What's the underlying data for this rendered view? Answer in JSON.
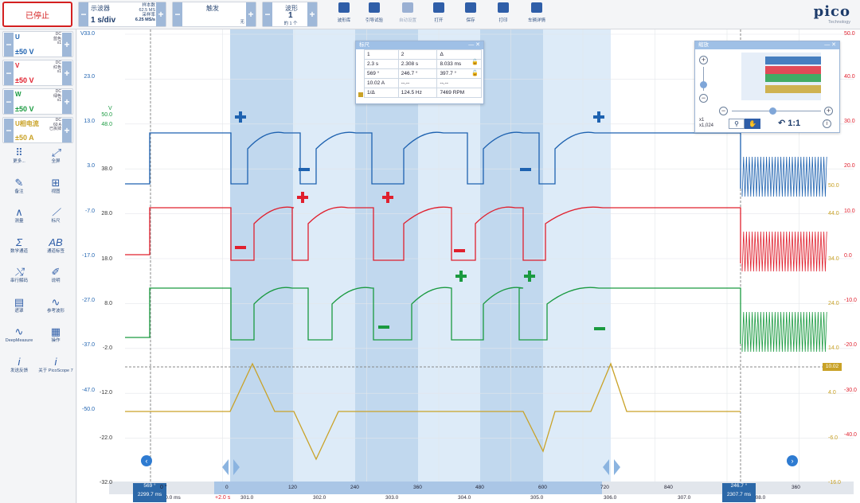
{
  "toolbar": {
    "stop_label": "已停止",
    "scope": {
      "title": "示波器",
      "value": "1 s/div",
      "samples_label": "样本数",
      "samples": "62.5 MS",
      "rate_label": "采样率",
      "rate": "6.25 MS/s"
    },
    "trigger": {
      "title": "触发",
      "value": "无"
    },
    "waveform": {
      "title": "波形",
      "value": "1",
      "of": "的 1 个"
    },
    "actions": [
      {
        "label": "波形库",
        "icon": "waveform-library-icon"
      },
      {
        "label": "引导试验",
        "icon": "guided-test-icon"
      },
      {
        "label": "自动设置",
        "icon": "auto-setup-icon"
      },
      {
        "label": "打开",
        "icon": "folder-open-icon"
      },
      {
        "label": "保存",
        "icon": "save-icon"
      },
      {
        "label": "打印",
        "icon": "print-icon"
      },
      {
        "label": "车辆详情",
        "icon": "vehicle-details-icon"
      }
    ],
    "brand": "pico",
    "brand_sub": "Technology"
  },
  "channels": [
    {
      "name": "U",
      "coupling": "DC",
      "color_name": "蓝色",
      "probe": "x1",
      "range": "±50 V",
      "color": "#1e62b0"
    },
    {
      "name": "V",
      "coupling": "DC",
      "color_name": "红色",
      "probe": "x1",
      "range": "±50 V",
      "color": "#e0202e"
    },
    {
      "name": "W",
      "coupling": "DC",
      "color_name": "绿色",
      "probe": "x1",
      "range": "±50 V",
      "color": "#1a9a40"
    },
    {
      "name": "U相电流",
      "coupling": "DC",
      "color_name": "60 A",
      "probe": "已拆掉",
      "range": "±50 A",
      "color": "#c9a227"
    }
  ],
  "tools": [
    {
      "label": "更多...",
      "icon": "more-dots-icon",
      "glyph": "⠿"
    },
    {
      "label": "全屏",
      "icon": "fullscreen-icon",
      "glyph": "⤢"
    },
    {
      "label": "备注",
      "icon": "notes-icon",
      "glyph": "✎"
    },
    {
      "label": "视图",
      "icon": "view-grid-icon",
      "glyph": "⊞"
    },
    {
      "label": "测量",
      "icon": "measure-icon",
      "glyph": "∧"
    },
    {
      "label": "标尺",
      "icon": "ruler-icon",
      "glyph": "⟋"
    },
    {
      "label": "数学通道",
      "icon": "math-channel-icon",
      "glyph": "Σ"
    },
    {
      "label": "通道标签",
      "icon": "channel-label-icon",
      "glyph": "AB"
    },
    {
      "label": "串行解码",
      "icon": "serial-decode-icon",
      "glyph": "⤭"
    },
    {
      "label": "说明",
      "icon": "description-icon",
      "glyph": "✐"
    },
    {
      "label": "遮罩",
      "icon": "mask-icon",
      "glyph": "▤"
    },
    {
      "label": "参考波形",
      "icon": "reference-waveform-icon",
      "glyph": "∿"
    },
    {
      "label": "DeepMeasure",
      "icon": "deepmeasure-icon",
      "glyph": "∿"
    },
    {
      "label": "操作",
      "icon": "actions-clapper-icon",
      "glyph": "▦"
    },
    {
      "label": "发送反馈",
      "icon": "feedback-icon",
      "glyph": "i"
    },
    {
      "label": "关于 PicoScope 7",
      "icon": "about-icon",
      "glyph": "i"
    }
  ],
  "axes": {
    "u": {
      "ticks": [
        "33.0",
        "23.0",
        "13.0",
        "3.0",
        "-7.0",
        "-17.0",
        "-27.0",
        "-37.0",
        "-47.0"
      ],
      "unit": "V"
    },
    "v": {
      "ticks": [
        "50.0",
        "48.0",
        "38.0",
        "28.0",
        "18.0",
        "8.0",
        "-2.0",
        "-12.0",
        "-22.0",
        "-32.0"
      ],
      "unit": "V"
    },
    "w": {
      "ticks": [
        "50.0",
        "40.0",
        "30.0",
        "20.0",
        "10.0",
        "0.0",
        "-10.0",
        "-20.0",
        "-30.0",
        "-40.0"
      ],
      "unit": "V"
    },
    "a": {
      "ticks": [
        "50.0",
        "44.0",
        "34.0",
        "24.0",
        "14.0",
        "4.0",
        "-6.0",
        "-16.0"
      ],
      "unit": "A",
      "extra": "-50.0"
    },
    "x_time": [
      "300.0 ms",
      "301.0",
      "302.0",
      "303.0",
      "304.0",
      "305.0",
      "306.0",
      "307.0",
      "308.0"
    ],
    "x_deg": [
      "0",
      "120",
      "240",
      "360",
      "480",
      "600",
      "720",
      "840",
      "960",
      "360"
    ],
    "marker_labels": [
      "0 °"
    ],
    "ruler_left": {
      "deg": "569 °",
      "time": "2299.7 ms"
    },
    "ruler_right": {
      "deg": "246.7 °",
      "time": "2307.7 ms"
    },
    "delta_label": "+2.0 s",
    "current_marker": "10.02"
  },
  "ruler_panel": {
    "title": "标尺",
    "headers": [
      "1",
      "2",
      "Δ"
    ],
    "rows": [
      [
        "2.3 s",
        "2.308 s",
        "8.033 ms"
      ],
      [
        "569 °",
        "246.7 °",
        "397.7 °"
      ],
      [
        "10.02 A",
        "--.--",
        "--.--"
      ]
    ],
    "freq": {
      "label": "1/Δ",
      "hz": "124.5 Hz",
      "rpm": "7469 RPM"
    }
  },
  "zoom_panel": {
    "title": "缩放",
    "scale_x": "x1",
    "scale_y": "x1,024",
    "reset": "1:1"
  },
  "chart_data": {
    "type": "line",
    "series": [
      {
        "name": "U",
        "color": "#1e62b0"
      },
      {
        "name": "V",
        "color": "#e0202e"
      },
      {
        "name": "W",
        "color": "#1a9a40"
      },
      {
        "name": "U相电流",
        "color": "#c9a227"
      }
    ]
  }
}
